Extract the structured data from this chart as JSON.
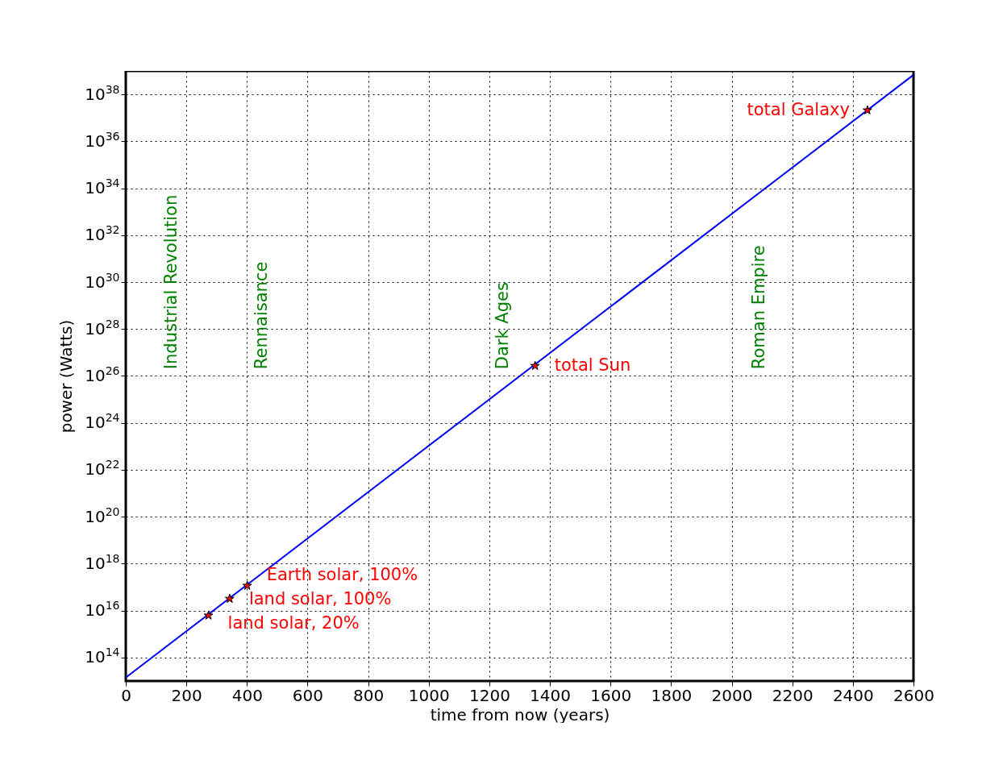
{
  "chart_data": {
    "type": "line",
    "xlabel": "time from now (years)",
    "ylabel": "power (Watts)",
    "series": [
      {
        "color": "#0000ff",
        "x": [
          0,
          2600
        ],
        "values": [
          14000000000000.0,
          6.8e+38
        ]
      },
      {
        "type": "scatter",
        "color": "#ff0000",
        "marker": "star",
        "x": [
          273,
          343,
          401,
          1351,
          2448
        ],
        "values": [
          6200000000000000.0,
          3.2e+16,
          1.15e+17,
          2.7e+26,
          2.1e+37
        ]
      }
    ],
    "annotations": [
      {
        "text": "land solar, 20%",
        "x": 273,
        "y": 6200000000000000.0
      },
      {
        "text": "land solar, 100%",
        "x": 343,
        "y": 3.2e+16
      },
      {
        "text": "Earth solar, 100%",
        "x": 401,
        "y": 1.15e+17
      },
      {
        "text": "total Sun",
        "x": 1351,
        "y": 2.7e+26
      },
      {
        "text": "total Galaxy",
        "x": 2448,
        "y": 2.1e+37
      },
      "Industrial Revolution",
      "Rennaisance",
      "Dark Ages",
      "Roman Empire"
    ],
    "log": "y",
    "grid": true,
    "line_style": "solid",
    "xlim": [
      0,
      2600
    ],
    "xticks": [
      0,
      200,
      400,
      600,
      800,
      1000,
      1200,
      1400,
      1600,
      1800,
      2000,
      2200,
      2400,
      2600
    ],
    "ylim": [
      10000000000000.0,
      1e+39
    ],
    "yticks": [
      {
        "value": 100000000000000.0,
        "label": "10$^{14}$"
      },
      {
        "value": 1e+16,
        "label": "10$^{16}$"
      },
      {
        "value": 1e+18,
        "label": "10$^{18}$"
      },
      {
        "value": 1e+20,
        "label": "10$^{20}$"
      },
      {
        "value": 1e+22,
        "label": "10$^{22}$"
      },
      {
        "value": 1e+24,
        "label": "10$^{24}$"
      },
      {
        "value": 1e+26,
        "label": "10$^{26}$"
      },
      {
        "value": 1e+28,
        "label": "10$^{28}$"
      },
      {
        "value": 1e+30,
        "label": "10$^{30}$"
      },
      {
        "value": 1e+32,
        "label": "10$^{32}$"
      },
      {
        "value": 1e+34,
        "label": "10$^{34}$"
      },
      {
        "value": 1e+36,
        "label": "10$^{36}$"
      },
      {
        "value": 1e+38,
        "label": "10$^{38}$"
      }
    ]
  }
}
